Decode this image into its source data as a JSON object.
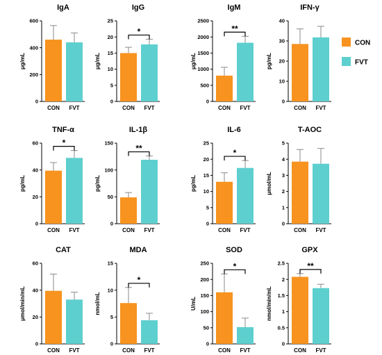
{
  "legend": {
    "position": "right",
    "items": [
      {
        "label": "CON",
        "color": "#f7931e"
      },
      {
        "label": "FVT",
        "color": "#5ecfcf"
      }
    ]
  },
  "chart_data": [
    {
      "type": "bar",
      "title": "IgA",
      "ylabel": "μg/mL",
      "categories": [
        "CON",
        "FVT"
      ],
      "values": [
        460,
        440
      ],
      "errors": [
        105,
        70
      ],
      "ylim": [
        0,
        600
      ],
      "yticks": [
        0,
        200,
        400,
        600
      ],
      "significance": ""
    },
    {
      "type": "bar",
      "title": "IgG",
      "ylabel": "μg/mL",
      "categories": [
        "CON",
        "FVT"
      ],
      "values": [
        15,
        17.7
      ],
      "errors": [
        1.8,
        1.6
      ],
      "ylim": [
        0,
        25
      ],
      "yticks": [
        0,
        5,
        10,
        15,
        20,
        25
      ],
      "significance": "*"
    },
    {
      "type": "bar",
      "title": "IgM",
      "ylabel": "μg/mL",
      "categories": [
        "CON",
        "FVT"
      ],
      "values": [
        800,
        1820
      ],
      "errors": [
        260,
        200
      ],
      "ylim": [
        0,
        2500
      ],
      "yticks": [
        0,
        500,
        1000,
        1500,
        2000,
        2500
      ],
      "significance": "**"
    },
    {
      "type": "bar",
      "title": "IFN-γ",
      "ylabel": "pg/mL",
      "categories": [
        "CON",
        "FVT"
      ],
      "values": [
        28.5,
        31.8
      ],
      "errors": [
        7.5,
        5.5
      ],
      "ylim": [
        0,
        40
      ],
      "yticks": [
        0,
        10,
        20,
        30,
        40
      ],
      "significance": ""
    },
    {
      "type": "bar",
      "title": "TNF-α",
      "ylabel": "pg/mL",
      "categories": [
        "CON",
        "FVT"
      ],
      "values": [
        39.5,
        49
      ],
      "errors": [
        6,
        5.5
      ],
      "ylim": [
        0,
        60
      ],
      "yticks": [
        0,
        20,
        40,
        60
      ],
      "significance": "*"
    },
    {
      "type": "bar",
      "title": "IL-1β",
      "ylabel": "pg/mL",
      "categories": [
        "CON",
        "FVT"
      ],
      "values": [
        49,
        119
      ],
      "errors": [
        9,
        7
      ],
      "ylim": [
        0,
        150
      ],
      "yticks": [
        0,
        50,
        100,
        150
      ],
      "significance": "**"
    },
    {
      "type": "bar",
      "title": "IL-6",
      "ylabel": "pg/mL",
      "categories": [
        "CON",
        "FVT"
      ],
      "values": [
        13,
        17.3
      ],
      "errors": [
        2.8,
        2.3
      ],
      "ylim": [
        0,
        25
      ],
      "yticks": [
        0,
        5,
        10,
        15,
        20,
        25
      ],
      "significance": "*"
    },
    {
      "type": "bar",
      "title": "T-AOC",
      "ylabel": "μmol/mL",
      "categories": [
        "CON",
        "FVT"
      ],
      "values": [
        3.85,
        3.72
      ],
      "errors": [
        0.75,
        0.95
      ],
      "ylim": [
        0,
        5
      ],
      "yticks": [
        0,
        1,
        2,
        3,
        4,
        5
      ],
      "significance": ""
    },
    {
      "type": "bar",
      "title": "CAT",
      "ylabel": "μmol/min/mL",
      "categories": [
        "CON",
        "FVT"
      ],
      "values": [
        39.5,
        33
      ],
      "errors": [
        12.5,
        5.5
      ],
      "ylim": [
        0,
        60
      ],
      "yticks": [
        0,
        20,
        40,
        60
      ],
      "significance": ""
    },
    {
      "type": "bar",
      "title": "MDA",
      "ylabel": "nmol/mL",
      "categories": [
        "CON",
        "FVT"
      ],
      "values": [
        7.6,
        4.4
      ],
      "errors": [
        2.9,
        1.3
      ],
      "ylim": [
        0,
        15
      ],
      "yticks": [
        0,
        5,
        10,
        15
      ],
      "significance": "*"
    },
    {
      "type": "bar",
      "title": "SOD",
      "ylabel": "U/mL",
      "categories": [
        "CON",
        "FVT"
      ],
      "values": [
        160,
        52
      ],
      "errors": [
        57,
        28
      ],
      "ylim": [
        0,
        250
      ],
      "yticks": [
        0,
        50,
        100,
        150,
        200,
        250
      ],
      "significance": "*"
    },
    {
      "type": "bar",
      "title": "GPX",
      "ylabel": "nmol/min/mL",
      "categories": [
        "CON",
        "FVT"
      ],
      "values": [
        2.08,
        1.73
      ],
      "errors": [
        0.1,
        0.12
      ],
      "ylim": [
        0,
        2.5
      ],
      "yticks": [
        0,
        0.5,
        1.0,
        1.5,
        2.0,
        2.5
      ],
      "significance": "**"
    }
  ]
}
